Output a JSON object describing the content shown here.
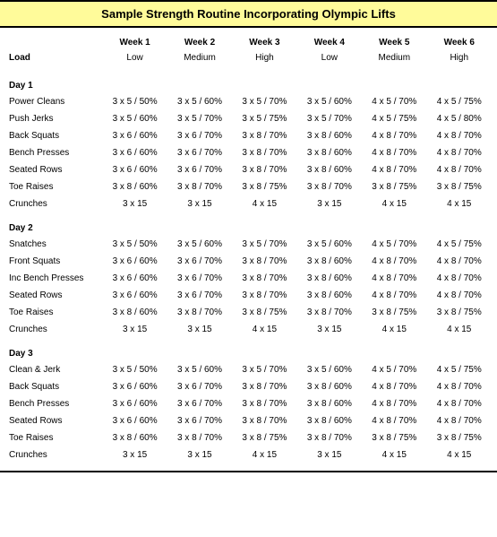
{
  "title": "Sample Strength Routine Incorporating Olympic Lifts",
  "headers": [
    "Week 1",
    "Week 2",
    "Week 3",
    "Week 4",
    "Week 5",
    "Week 6"
  ],
  "load_label": "Load",
  "loads": [
    "Low",
    "Medium",
    "High",
    "Low",
    "Medium",
    "High"
  ],
  "days": [
    {
      "name": "Day 1",
      "rows": [
        {
          "label": "Power Cleans",
          "vals": [
            "3 x 5 / 50%",
            "3 x 5 / 60%",
            "3 x 5 / 70%",
            "3 x 5 / 60%",
            "4 x 5 / 70%",
            "4 x 5 / 75%"
          ]
        },
        {
          "label": "Push Jerks",
          "vals": [
            "3 x 5 / 60%",
            "3 x 5 / 70%",
            "3 x 5 / 75%",
            "3 x 5 / 70%",
            "4 x 5 / 75%",
            "4 x 5 / 80%"
          ]
        },
        {
          "label": "Back Squats",
          "vals": [
            "3 x 6 / 60%",
            "3 x 6 / 70%",
            "3 x 8 / 70%",
            "3 x 8 / 60%",
            "4 x 8 / 70%",
            "4 x 8 / 70%"
          ]
        },
        {
          "label": "Bench Presses",
          "vals": [
            "3 x 6 / 60%",
            "3 x 6 / 70%",
            "3 x 8 / 70%",
            "3 x 8 / 60%",
            "4 x 8 / 70%",
            "4 x 8 / 70%"
          ]
        },
        {
          "label": "Seated Rows",
          "vals": [
            "3 x 6 / 60%",
            "3 x 6 / 70%",
            "3 x 8 / 70%",
            "3 x 8 / 60%",
            "4 x 8 / 70%",
            "4 x 8 / 70%"
          ]
        },
        {
          "label": "Toe Raises",
          "vals": [
            "3 x 8 / 60%",
            "3 x 8 / 70%",
            "3 x 8 / 75%",
            "3 x 8 / 70%",
            "3 x 8 / 75%",
            "3 x 8 / 75%"
          ]
        },
        {
          "label": "Crunches",
          "vals": [
            "3 x 15",
            "3 x 15",
            "4 x 15",
            "3 x 15",
            "4 x 15",
            "4 x 15"
          ]
        }
      ]
    },
    {
      "name": "Day 2",
      "rows": [
        {
          "label": "Snatches",
          "vals": [
            "3 x 5 / 50%",
            "3 x 5 / 60%",
            "3 x 5 / 70%",
            "3 x 5 / 60%",
            "4 x 5 / 70%",
            "4 x 5 / 75%"
          ]
        },
        {
          "label": "Front Squats",
          "vals": [
            "3 x 6 / 60%",
            "3 x 6 / 70%",
            "3 x 8 / 70%",
            "3 x 8 / 60%",
            "4 x 8 / 70%",
            "4 x 8 / 70%"
          ]
        },
        {
          "label": "Inc Bench Presses",
          "vals": [
            "3 x 6 / 60%",
            "3 x 6 / 70%",
            "3 x 8 / 70%",
            "3 x 8 / 60%",
            "4 x 8 / 70%",
            "4 x 8 / 70%"
          ]
        },
        {
          "label": "Seated Rows",
          "vals": [
            "3 x 6 / 60%",
            "3 x 6 / 70%",
            "3 x 8 / 70%",
            "3 x 8 / 60%",
            "4 x 8 / 70%",
            "4 x 8 / 70%"
          ]
        },
        {
          "label": "Toe Raises",
          "vals": [
            "3 x 8 / 60%",
            "3 x 8 / 70%",
            "3 x 8 / 75%",
            "3 x 8 / 70%",
            "3 x 8 / 75%",
            "3 x 8 / 75%"
          ]
        },
        {
          "label": "Crunches",
          "vals": [
            "3 x 15",
            "3 x 15",
            "4 x 15",
            "3 x 15",
            "4 x 15",
            "4 x 15"
          ]
        }
      ]
    },
    {
      "name": "Day 3",
      "rows": [
        {
          "label": "Clean & Jerk",
          "vals": [
            "3 x 5 / 50%",
            "3 x 5 / 60%",
            "3 x 5 / 70%",
            "3 x 5 / 60%",
            "4 x 5 / 70%",
            "4 x 5 / 75%"
          ]
        },
        {
          "label": "Back Squats",
          "vals": [
            "3 x 6 / 60%",
            "3 x 6 / 70%",
            "3 x 8 / 70%",
            "3 x 8 / 60%",
            "4 x 8 / 70%",
            "4 x 8 / 70%"
          ]
        },
        {
          "label": "Bench Presses",
          "vals": [
            "3 x 6 / 60%",
            "3 x 6 / 70%",
            "3 x 8 / 70%",
            "3 x 8 / 60%",
            "4 x 8 / 70%",
            "4 x 8 / 70%"
          ]
        },
        {
          "label": "Seated Rows",
          "vals": [
            "3 x 6 / 60%",
            "3 x 6 / 70%",
            "3 x 8 / 70%",
            "3 x 8 / 60%",
            "4 x 8 / 70%",
            "4 x 8 / 70%"
          ]
        },
        {
          "label": "Toe Raises",
          "vals": [
            "3 x 8 / 60%",
            "3 x 8 / 70%",
            "3 x 8 / 75%",
            "3 x 8 / 70%",
            "3 x 8 / 75%",
            "3 x 8 / 75%"
          ]
        },
        {
          "label": "Crunches",
          "vals": [
            "3 x 15",
            "3 x 15",
            "4 x 15",
            "3 x 15",
            "4 x 15",
            "4 x 15"
          ]
        }
      ]
    }
  ],
  "styling": {
    "title_bg": "#fffb9a",
    "border_color": "#000000",
    "font_family": "Verdana, Arial, sans-serif",
    "title_fontsize": 13,
    "body_fontsize": 10,
    "col_width_label": 110,
    "col_width_data": 74
  }
}
